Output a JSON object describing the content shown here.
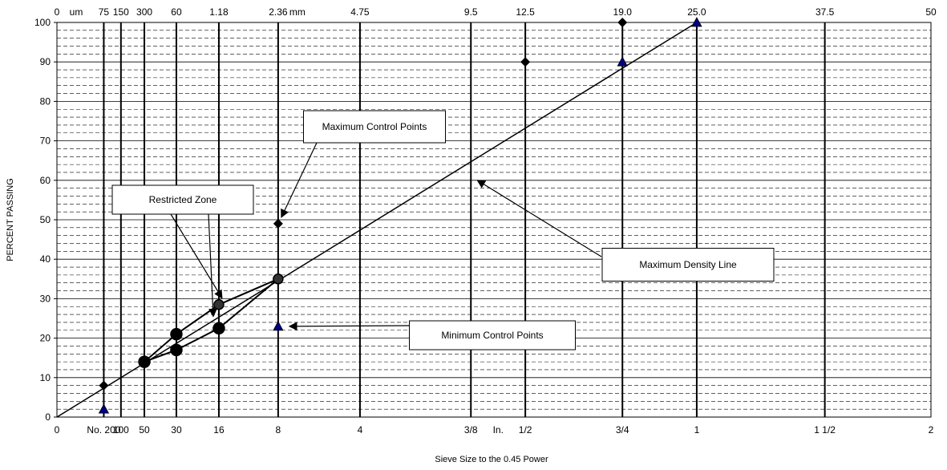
{
  "chart_data": {
    "type": "scatter",
    "title": "",
    "xlabel": "Sieve Size to the 0.45 Power",
    "ylabel": "PERCENT PASSING",
    "ylim": [
      0,
      100
    ],
    "y_ticks": [
      "0",
      "10",
      "20",
      "30",
      "40",
      "50",
      "60",
      "70",
      "80",
      "90",
      "100"
    ],
    "grid": "solid major lines every 10, dashed minor lines every 2",
    "x_scale": "sieve size (mm) raised to the 0.45 power",
    "xlim_mm": [
      0,
      50
    ],
    "sieves": [
      {
        "size_mm": 0,
        "top": "0",
        "bottom": "0",
        "line": false
      },
      {
        "size_mm": 0.075,
        "top": "75",
        "bottom": "No. 200",
        "line": true
      },
      {
        "size_mm": 0.15,
        "top": "150",
        "bottom": "100",
        "line": true
      },
      {
        "size_mm": 0.3,
        "top": "300",
        "bottom": "50",
        "line": true
      },
      {
        "size_mm": 0.6,
        "top": "60",
        "bottom": "30",
        "line": true
      },
      {
        "size_mm": 1.18,
        "top": "1.18",
        "bottom": "16",
        "line": true
      },
      {
        "size_mm": 2.36,
        "top": "2.36",
        "bottom": "8",
        "line": true
      },
      {
        "size_mm": 4.75,
        "top": "4.75",
        "bottom": "4",
        "line": true
      },
      {
        "size_mm": 9.5,
        "top": "9.5",
        "bottom": "3/8",
        "line": true
      },
      {
        "size_mm": 12.5,
        "top": "12.5",
        "bottom": "1/2",
        "line": true
      },
      {
        "size_mm": 19.0,
        "top": "19.0",
        "bottom": "3/4",
        "line": true
      },
      {
        "size_mm": 25.0,
        "top": "25.0",
        "bottom": "1",
        "line": true
      },
      {
        "size_mm": 37.5,
        "top": "37.5",
        "bottom": "1 1/2",
        "line": true
      },
      {
        "size_mm": 50,
        "top": "50",
        "bottom": "2",
        "line": false
      }
    ],
    "unit_labels": [
      {
        "text": "um",
        "after_mm": 0,
        "row": "top"
      },
      {
        "text": "mm",
        "after_mm": 2.36,
        "row": "top"
      },
      {
        "text": "In.",
        "after_mm": 9.5,
        "row": "bottom"
      }
    ],
    "series": [
      {
        "name": "Maximum Density Line",
        "kind": "line",
        "color": "#000000",
        "points": [
          [
            0,
            0
          ],
          [
            25.0,
            100
          ]
        ]
      },
      {
        "name": "Maximum Control Points",
        "kind": "diamond",
        "color": "#000000",
        "points": [
          [
            0.075,
            8
          ],
          [
            2.36,
            49
          ],
          [
            12.5,
            90
          ],
          [
            19.0,
            100
          ]
        ]
      },
      {
        "name": "Minimum Control Points",
        "kind": "triangle",
        "color": "#000080",
        "points": [
          [
            0.075,
            2
          ],
          [
            2.36,
            23
          ],
          [
            19.0,
            90
          ],
          [
            25.0,
            100
          ]
        ]
      },
      {
        "name": "Restricted Zone",
        "kind": "polygon",
        "color": "#000000",
        "points": [
          [
            0.3,
            14
          ],
          [
            0.6,
            21
          ],
          [
            1.18,
            28.5
          ],
          [
            2.36,
            35
          ],
          [
            1.18,
            22.5
          ],
          [
            0.6,
            17
          ]
        ]
      }
    ],
    "annotations": [
      {
        "text": "Maximum Control Points",
        "point": [
          2.36,
          49
        ]
      },
      {
        "text": "Restricted Zone",
        "point": [
          1.18,
          28.5
        ]
      },
      {
        "text": "Maximum Density Line",
        "point": [
          9.5,
          60
        ]
      },
      {
        "text": "Minimum Control Points",
        "point": [
          2.36,
          23
        ]
      }
    ]
  }
}
